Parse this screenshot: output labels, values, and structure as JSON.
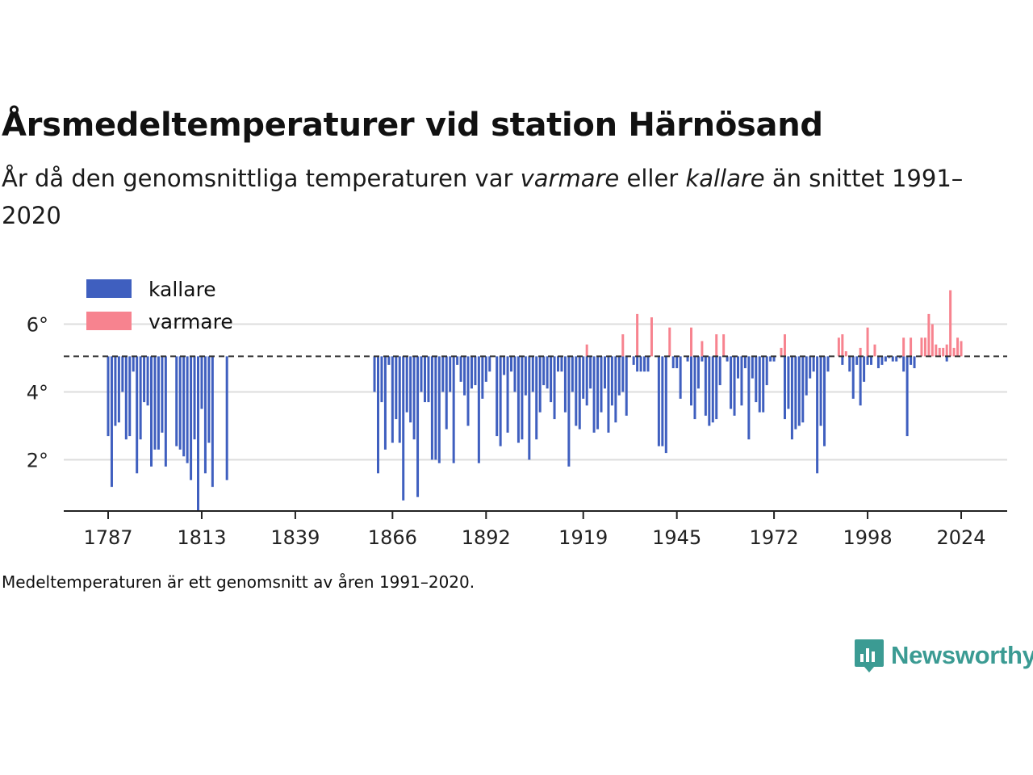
{
  "title": "Årsmedeltemperaturer vid station Härnösand",
  "subtitle": {
    "part1": "År då den genomsnittliga temperaturen var ",
    "warm_word": "varmare",
    "part2": " eller ",
    "cold_word": "kallare",
    "part3": " än snittet 1991–2020"
  },
  "note": "Medeltemperaturen är ett genomsnitt av åren 1991–2020.",
  "brand": "Newsworthy",
  "colors": {
    "cold": "#3f5fbf",
    "warm": "#f7838f",
    "brand": "#3b9b93",
    "grid": "#dddddd",
    "axis": "#222222"
  },
  "chart_data": {
    "type": "bar",
    "baseline": 5.05,
    "baseline_style": "dashed",
    "ylim": [
      0.5,
      7.4
    ],
    "yticks": [
      2,
      4,
      6
    ],
    "ytick_labels": [
      "2°",
      "4°",
      "6°"
    ],
    "xlim": [
      1778,
      2035
    ],
    "xticks": [
      1787,
      1813,
      1839,
      1866,
      1892,
      1919,
      1945,
      1972,
      1998,
      2024
    ],
    "xtick_labels": [
      "1787",
      "1813",
      "1839",
      "1866",
      "1892",
      "1919",
      "1945",
      "1972",
      "1998",
      "2024"
    ],
    "grid": true,
    "legend": {
      "position": "top-left",
      "entries": [
        {
          "label": "kallare",
          "color_key": "cold"
        },
        {
          "label": "varmare",
          "color_key": "warm"
        }
      ]
    },
    "series": [
      {
        "name": "kallare",
        "points": [
          [
            1787,
            2.7
          ],
          [
            1788,
            1.2
          ],
          [
            1789,
            3.0
          ],
          [
            1790,
            3.1
          ],
          [
            1791,
            4.0
          ],
          [
            1792,
            2.6
          ],
          [
            1793,
            2.7
          ],
          [
            1794,
            4.6
          ],
          [
            1795,
            1.6
          ],
          [
            1796,
            2.6
          ],
          [
            1797,
            3.7
          ],
          [
            1798,
            3.6
          ],
          [
            1799,
            1.8
          ],
          [
            1800,
            2.3
          ],
          [
            1801,
            2.3
          ],
          [
            1802,
            2.8
          ],
          [
            1803,
            1.8
          ],
          [
            1806,
            2.4
          ],
          [
            1807,
            2.3
          ],
          [
            1808,
            2.1
          ],
          [
            1809,
            1.9
          ],
          [
            1810,
            1.4
          ],
          [
            1811,
            2.6
          ],
          [
            1812,
            0.5
          ],
          [
            1813,
            3.5
          ],
          [
            1814,
            1.6
          ],
          [
            1815,
            2.5
          ],
          [
            1816,
            1.2
          ],
          [
            1820,
            1.4
          ],
          [
            1861,
            4.0
          ],
          [
            1862,
            1.6
          ],
          [
            1863,
            3.7
          ],
          [
            1864,
            2.3
          ],
          [
            1865,
            4.8
          ],
          [
            1866,
            2.5
          ],
          [
            1867,
            3.2
          ],
          [
            1868,
            2.5
          ],
          [
            1869,
            0.8
          ],
          [
            1870,
            3.4
          ],
          [
            1871,
            3.1
          ],
          [
            1872,
            2.6
          ],
          [
            1873,
            0.9
          ],
          [
            1874,
            4.0
          ],
          [
            1875,
            3.7
          ],
          [
            1876,
            3.7
          ],
          [
            1877,
            2.0
          ],
          [
            1878,
            2.0
          ],
          [
            1879,
            1.9
          ],
          [
            1880,
            4.0
          ],
          [
            1881,
            2.9
          ],
          [
            1882,
            4.0
          ],
          [
            1883,
            1.9
          ],
          [
            1884,
            4.8
          ],
          [
            1885,
            4.3
          ],
          [
            1886,
            3.9
          ],
          [
            1887,
            3.0
          ],
          [
            1888,
            4.1
          ],
          [
            1889,
            4.2
          ],
          [
            1890,
            1.9
          ],
          [
            1891,
            3.8
          ],
          [
            1892,
            4.3
          ],
          [
            1893,
            4.6
          ],
          [
            1895,
            2.7
          ],
          [
            1896,
            2.4
          ],
          [
            1897,
            4.5
          ],
          [
            1898,
            2.8
          ],
          [
            1899,
            4.6
          ],
          [
            1900,
            4.0
          ],
          [
            1901,
            2.5
          ],
          [
            1902,
            2.6
          ],
          [
            1903,
            3.9
          ],
          [
            1904,
            2.0
          ],
          [
            1905,
            4.0
          ],
          [
            1906,
            2.6
          ],
          [
            1907,
            3.4
          ],
          [
            1908,
            4.2
          ],
          [
            1909,
            4.1
          ],
          [
            1910,
            3.7
          ],
          [
            1911,
            3.2
          ],
          [
            1912,
            4.6
          ],
          [
            1913,
            4.6
          ],
          [
            1914,
            3.4
          ],
          [
            1915,
            1.8
          ],
          [
            1916,
            4.0
          ],
          [
            1917,
            3.0
          ],
          [
            1918,
            2.9
          ],
          [
            1919,
            3.8
          ],
          [
            1920,
            3.6
          ],
          [
            1921,
            4.1
          ],
          [
            1922,
            2.8
          ],
          [
            1923,
            2.9
          ],
          [
            1924,
            3.4
          ],
          [
            1925,
            4.1
          ],
          [
            1926,
            2.8
          ],
          [
            1927,
            3.6
          ],
          [
            1928,
            3.1
          ],
          [
            1929,
            3.9
          ],
          [
            1930,
            4.0
          ],
          [
            1931,
            3.3
          ],
          [
            1933,
            4.8
          ],
          [
            1934,
            4.6
          ],
          [
            1935,
            4.6
          ],
          [
            1936,
            4.6
          ],
          [
            1937,
            4.6
          ],
          [
            1940,
            2.4
          ],
          [
            1941,
            2.4
          ],
          [
            1942,
            2.2
          ],
          [
            1944,
            4.7
          ],
          [
            1945,
            4.7
          ],
          [
            1946,
            3.8
          ],
          [
            1948,
            4.9
          ],
          [
            1949,
            3.6
          ],
          [
            1950,
            3.2
          ],
          [
            1951,
            4.1
          ],
          [
            1952,
            4.9
          ],
          [
            1953,
            3.3
          ],
          [
            1954,
            3.0
          ],
          [
            1955,
            3.1
          ],
          [
            1956,
            3.2
          ],
          [
            1957,
            4.2
          ],
          [
            1959,
            4.9
          ],
          [
            1960,
            3.5
          ],
          [
            1961,
            3.3
          ],
          [
            1962,
            4.4
          ],
          [
            1963,
            3.6
          ],
          [
            1964,
            4.7
          ],
          [
            1965,
            2.6
          ],
          [
            1966,
            4.4
          ],
          [
            1967,
            3.7
          ],
          [
            1968,
            3.4
          ],
          [
            1969,
            3.4
          ],
          [
            1970,
            4.2
          ],
          [
            1971,
            4.9
          ],
          [
            1972,
            4.9
          ],
          [
            1975,
            3.2
          ],
          [
            1976,
            3.5
          ],
          [
            1977,
            2.6
          ],
          [
            1978,
            2.9
          ],
          [
            1979,
            3.0
          ],
          [
            1980,
            3.1
          ],
          [
            1981,
            3.9
          ],
          [
            1982,
            4.4
          ],
          [
            1983,
            4.6
          ],
          [
            1984,
            1.6
          ],
          [
            1985,
            3.0
          ],
          [
            1986,
            2.4
          ],
          [
            1987,
            4.6
          ],
          [
            1991,
            4.8
          ],
          [
            1993,
            4.6
          ],
          [
            1994,
            3.8
          ],
          [
            1995,
            4.8
          ],
          [
            1996,
            3.6
          ],
          [
            1997,
            4.3
          ],
          [
            1998,
            4.8
          ],
          [
            1999,
            4.8
          ],
          [
            2001,
            4.7
          ],
          [
            2002,
            4.8
          ],
          [
            2003,
            4.9
          ],
          [
            2004,
            5.0
          ],
          [
            2005,
            4.9
          ],
          [
            2006,
            4.9
          ],
          [
            2007,
            5.0
          ],
          [
            2008,
            4.6
          ],
          [
            2009,
            2.7
          ],
          [
            2010,
            4.8
          ],
          [
            2011,
            4.7
          ],
          [
            2020,
            4.9
          ]
        ]
      },
      {
        "name": "varmare",
        "points": [
          [
            1920,
            5.4
          ],
          [
            1930,
            5.7
          ],
          [
            1934,
            6.3
          ],
          [
            1938,
            6.2
          ],
          [
            1943,
            5.9
          ],
          [
            1949,
            5.9
          ],
          [
            1952,
            5.5
          ],
          [
            1956,
            5.7
          ],
          [
            1958,
            5.7
          ],
          [
            1974,
            5.3
          ],
          [
            1975,
            5.7
          ],
          [
            1990,
            5.6
          ],
          [
            1991,
            5.7
          ],
          [
            1992,
            5.2
          ],
          [
            1996,
            5.3
          ],
          [
            1998,
            5.9
          ],
          [
            2000,
            5.4
          ],
          [
            2008,
            5.6
          ],
          [
            2010,
            5.6
          ],
          [
            2013,
            5.6
          ],
          [
            2014,
            5.6
          ],
          [
            2015,
            6.3
          ],
          [
            2016,
            6.0
          ],
          [
            2017,
            5.4
          ],
          [
            2018,
            5.3
          ],
          [
            2019,
            5.3
          ],
          [
            2020,
            5.4
          ],
          [
            2021,
            7.0
          ],
          [
            2022,
            5.3
          ],
          [
            2023,
            5.6
          ],
          [
            2024,
            5.5
          ]
        ]
      }
    ]
  }
}
